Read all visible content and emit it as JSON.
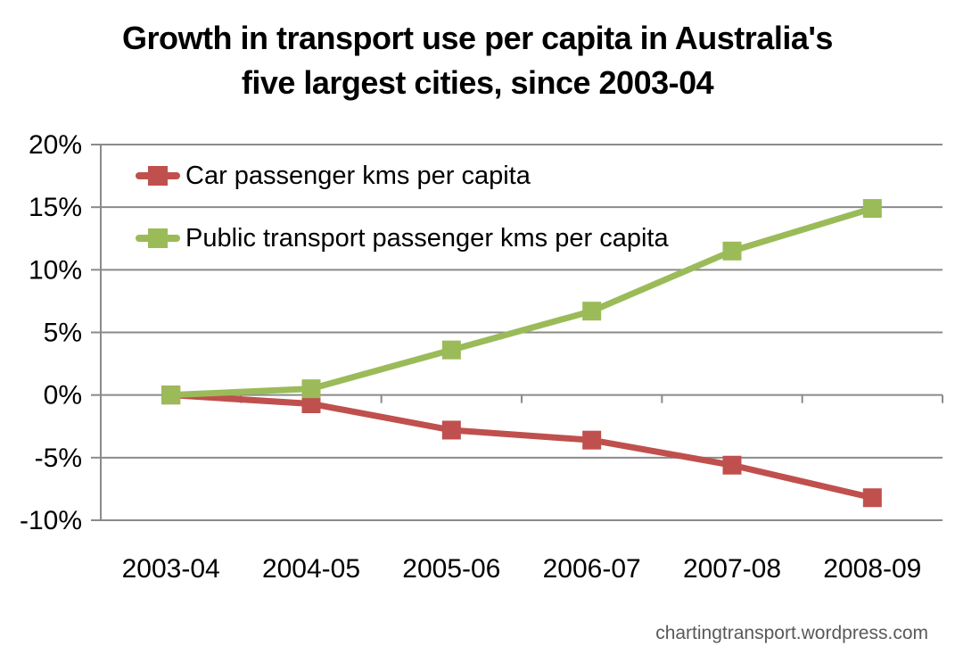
{
  "title": {
    "line1": "Growth in transport use per capita in Australia's",
    "line2": "five largest cities, since 2003-04"
  },
  "footer": {
    "credit": "chartingtransport.wordpress.com"
  },
  "colors": {
    "gridline": "#8A8A8A",
    "axis": "#8A8A8A",
    "title_text": "#000000",
    "tick_text": "#000000",
    "footer_text": "#595959",
    "background": "#FFFFFF",
    "car_series": "#C0504D",
    "public_transport_series": "#9BBB59"
  },
  "chart_data": {
    "type": "line",
    "title": "Growth in transport use per capita in Australia's five largest cities, since 2003-04",
    "xlabel": "",
    "ylabel": "",
    "categories": [
      "2003-04",
      "2004-05",
      "2005-06",
      "2006-07",
      "2007-08",
      "2008-09"
    ],
    "series": [
      {
        "name": "Car passenger kms per capita",
        "color": "#C0504D",
        "marker": "square",
        "values": [
          0,
          -0.7,
          -2.8,
          -3.6,
          -5.6,
          -8.2
        ]
      },
      {
        "name": "Public transport passenger kms per capita",
        "color": "#9BBB59",
        "marker": "square",
        "values": [
          0,
          0.5,
          3.6,
          6.7,
          11.5,
          14.9
        ]
      }
    ],
    "ylim": [
      -10,
      20
    ],
    "ytick_step": 5,
    "ytick_labels": [
      "20%",
      "15%",
      "10%",
      "5%",
      "0%",
      "-5%",
      "-10%"
    ],
    "value_unit": "%",
    "grid": true,
    "legend_position": "top-left-inside"
  }
}
